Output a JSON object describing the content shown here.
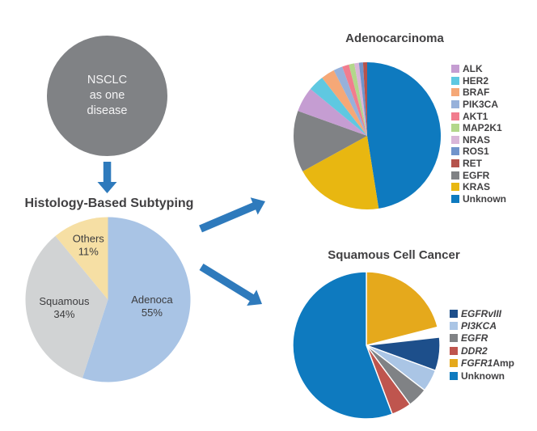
{
  "flow": {
    "circle_lines": [
      "NSCLC",
      "as one",
      "disease"
    ]
  },
  "colors": {
    "arrow_blue": "#2e7abc",
    "circle_fill": "#808285",
    "circle_text": "#f4f4f5",
    "title_text": "#414042",
    "legend_text": "#414042",
    "pie_label_text": "#3c3c3e"
  },
  "chart_data": [
    {
      "id": "histology",
      "type": "pie",
      "title": "Histology-Based Subtyping",
      "labels_inside": true,
      "legend_position": "none",
      "slices": [
        {
          "label": "Adenoca",
          "value": 55,
          "color": "#a9c4e5",
          "label_r": 0.54
        },
        {
          "label": "Squamous",
          "value": 34,
          "color": "#d1d3d4",
          "label_r": 0.54
        },
        {
          "label": "Others",
          "value": 11,
          "color": "#f6dfa4",
          "label_r": 0.7
        }
      ]
    },
    {
      "id": "adeno",
      "type": "pie",
      "title": "Adenocarcinoma",
      "labels_inside": false,
      "legend_position": "right",
      "slices": [
        {
          "label": "Unknown",
          "value": 47.5,
          "color": "#0e7abf"
        },
        {
          "label": "KRAS",
          "value": 19.5,
          "color": "#e8b711"
        },
        {
          "label": "EGFR",
          "value": 13.5,
          "color": "#808285"
        },
        {
          "label": "ALK",
          "value": 5.5,
          "color": "#c59dd2"
        },
        {
          "label": "HER2",
          "value": 3.5,
          "color": "#5fc8e1"
        },
        {
          "label": "BRAF",
          "value": 3,
          "color": "#f5a877"
        },
        {
          "label": "PIK3CA",
          "value": 2,
          "color": "#97b1da"
        },
        {
          "label": "AKT1",
          "value": 1.5,
          "color": "#f17d8e"
        },
        {
          "label": "MAP2K1",
          "value": 1.2,
          "color": "#b3d78b"
        },
        {
          "label": "NRAS",
          "value": 1,
          "color": "#d9b6d8"
        },
        {
          "label": "ROS1",
          "value": 0.9,
          "color": "#7194cb"
        },
        {
          "label": "RET",
          "value": 0.9,
          "color": "#b5534c"
        }
      ],
      "legend": [
        {
          "text": "ALK",
          "slice": "ALK",
          "italic": false,
          "suffix": ""
        },
        {
          "text": "HER2",
          "slice": "HER2",
          "italic": false,
          "suffix": ""
        },
        {
          "text": "BRAF",
          "slice": "BRAF",
          "italic": false,
          "suffix": ""
        },
        {
          "text": "PIK3CA",
          "slice": "PIK3CA",
          "italic": false,
          "suffix": ""
        },
        {
          "text": "AKT1",
          "slice": "AKT1",
          "italic": false,
          "suffix": ""
        },
        {
          "text": "MAP2K1",
          "slice": "MAP2K1",
          "italic": false,
          "suffix": ""
        },
        {
          "text": "NRAS",
          "slice": "NRAS",
          "italic": false,
          "suffix": ""
        },
        {
          "text": "ROS1",
          "slice": "ROS1",
          "italic": false,
          "suffix": ""
        },
        {
          "text": "RET",
          "slice": "RET",
          "italic": false,
          "suffix": ""
        },
        {
          "text": "EGFR",
          "slice": "EGFR",
          "italic": false,
          "suffix": ""
        },
        {
          "text": "KRAS",
          "slice": "KRAS",
          "italic": false,
          "suffix": ""
        },
        {
          "text": "Unknown",
          "slice": "Unknown",
          "italic": false,
          "suffix": ""
        }
      ]
    },
    {
      "id": "squamous",
      "type": "pie",
      "title": "Squamous Cell Cancer",
      "labels_inside": false,
      "legend_position": "right",
      "slice_stroke": "#ffffff",
      "slice_stroke_width": 1.4,
      "slices": [
        {
          "label": "FGFR1 Amp",
          "value": 21.5,
          "color": "#e5a91c",
          "gap_after_deg": 8
        },
        {
          "label": "EGFRvIII",
          "value": 7.5,
          "color": "#1d4f8b"
        },
        {
          "label": "PI3KCA",
          "value": 5,
          "color": "#aac5e5"
        },
        {
          "label": "EGFR",
          "value": 4.5,
          "color": "#808285"
        },
        {
          "label": "DDR2",
          "value": 4.5,
          "color": "#bf554e"
        },
        {
          "label": "Unknown",
          "value": 57,
          "color": "#0e7abf"
        }
      ],
      "legend": [
        {
          "text": "EGFRvIII",
          "slice": "EGFRvIII",
          "italic": true,
          "suffix": ""
        },
        {
          "text": "PI3KCA",
          "slice": "PI3KCA",
          "italic": true,
          "suffix": ""
        },
        {
          "text": "EGFR",
          "slice": "EGFR",
          "italic": true,
          "suffix": ""
        },
        {
          "text": "DDR2",
          "slice": "DDR2",
          "italic": true,
          "suffix": ""
        },
        {
          "text": "FGFR1",
          "slice": "FGFR1 Amp",
          "italic": true,
          "suffix": " Amp"
        },
        {
          "text": "Unknown",
          "slice": "Unknown",
          "italic": false,
          "suffix": ""
        }
      ]
    }
  ]
}
